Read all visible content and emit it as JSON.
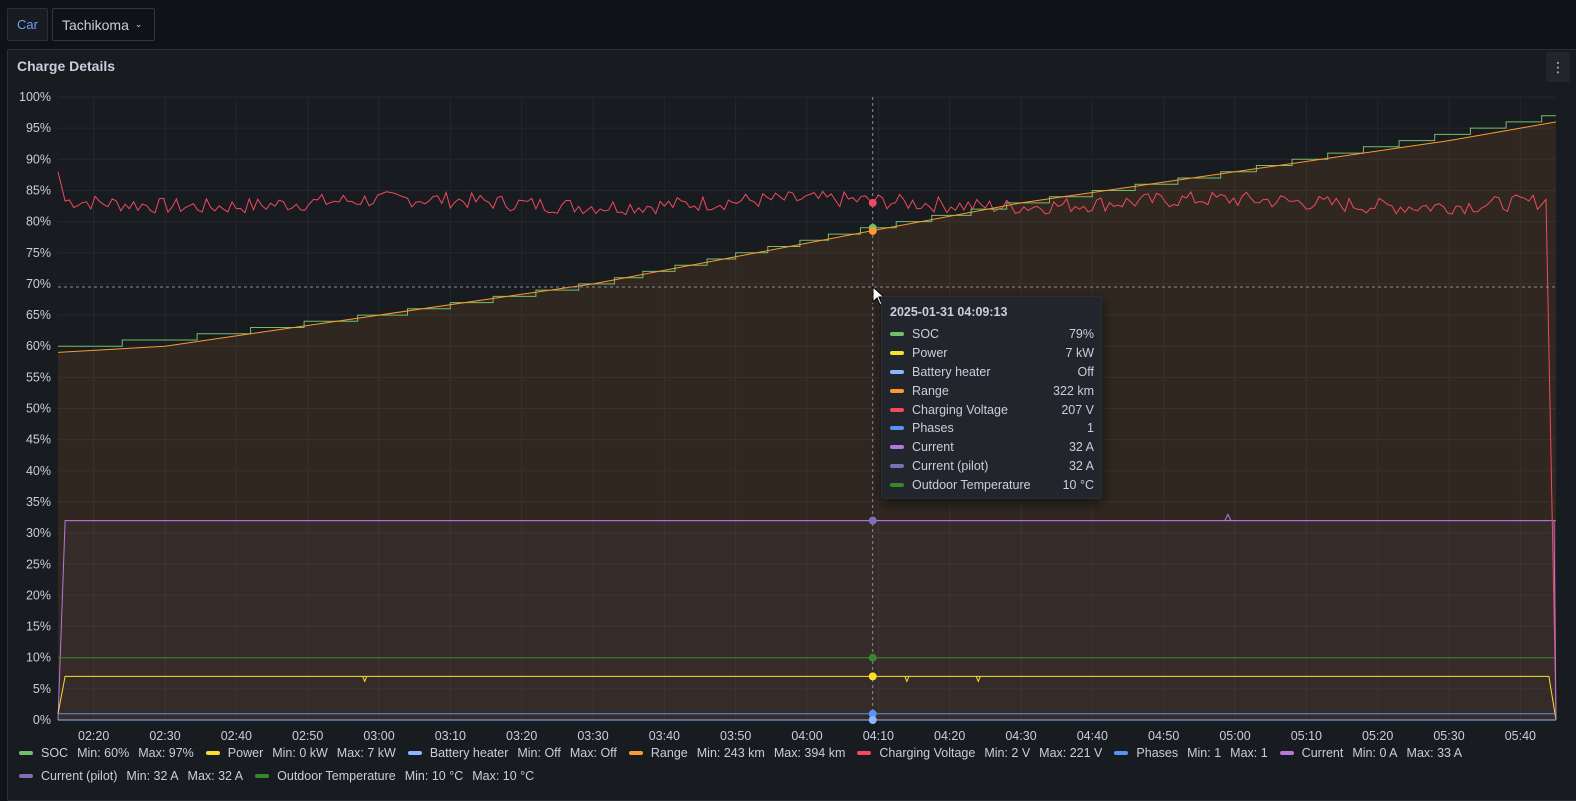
{
  "topbar": {
    "variable_label": "Car",
    "variable_value": "Tachikoma"
  },
  "panel": {
    "title": "Charge Details",
    "menu_icon": "vertical-ellipsis-icon"
  },
  "tooltip": {
    "time": "2025-01-31 04:09:13",
    "rows": [
      {
        "name": "SOC",
        "value": "79%",
        "color": "#73bf69"
      },
      {
        "name": "Power",
        "value": "7 kW",
        "color": "#fade2a"
      },
      {
        "name": "Battery heater",
        "value": "Off",
        "color": "#8ab8ff"
      },
      {
        "name": "Range",
        "value": "322 km",
        "color": "#ff9830"
      },
      {
        "name": "Charging Voltage",
        "value": "207 V",
        "color": "#f2495c"
      },
      {
        "name": "Phases",
        "value": "1",
        "color": "#5794f2"
      },
      {
        "name": "Current",
        "value": "32 A",
        "color": "#b877d9"
      },
      {
        "name": "Current (pilot)",
        "value": "32 A",
        "color": "#806eb7"
      },
      {
        "name": "Outdoor Temperature",
        "value": "10 °C",
        "color": "#37872d"
      }
    ]
  },
  "legend": [
    {
      "name": "SOC",
      "min": "Min: 60%",
      "max": "Max: 97%",
      "color": "#73bf69"
    },
    {
      "name": "Power",
      "min": "Min: 0 kW",
      "max": "Max: 7 kW",
      "color": "#fade2a"
    },
    {
      "name": "Battery heater",
      "min": "Min: Off",
      "max": "Max: Off",
      "color": "#8ab8ff"
    },
    {
      "name": "Range",
      "min": "Min: 243 km",
      "max": "Max: 394 km",
      "color": "#ff9830"
    },
    {
      "name": "Charging Voltage",
      "min": "Min: 2 V",
      "max": "Max: 221 V",
      "color": "#f2495c"
    },
    {
      "name": "Phases",
      "min": "Min: 1",
      "max": "Max: 1",
      "color": "#5794f2"
    },
    {
      "name": "Current",
      "min": "Min: 0 A",
      "max": "Max: 33 A",
      "color": "#b877d9"
    },
    {
      "name": "Current (pilot)",
      "min": "Min: 32 A",
      "max": "Max: 32 A",
      "color": "#806eb7"
    },
    {
      "name": "Outdoor Temperature",
      "min": "Min: 10 °C",
      "max": "Max: 10 °C",
      "color": "#37872d"
    }
  ],
  "chart_data": {
    "type": "line",
    "y_ticks": [
      "0%",
      "5%",
      "10%",
      "15%",
      "20%",
      "25%",
      "30%",
      "35%",
      "40%",
      "45%",
      "50%",
      "55%",
      "60%",
      "65%",
      "70%",
      "75%",
      "80%",
      "85%",
      "90%",
      "95%",
      "100%"
    ],
    "ylim": [
      0,
      100
    ],
    "x_ticks": [
      "02:20",
      "02:30",
      "02:40",
      "02:50",
      "03:00",
      "03:10",
      "03:20",
      "03:30",
      "03:40",
      "03:50",
      "04:00",
      "04:10",
      "04:20",
      "04:30",
      "04:40",
      "04:50",
      "05:00",
      "05:10",
      "05:20",
      "05:30",
      "05:40"
    ],
    "x_range": [
      "02:15",
      "05:45"
    ],
    "crosshair_x": "04:09:13",
    "crosshair_y": 69.5,
    "series": [
      {
        "name": "SOC",
        "color": "#73bf69",
        "points": [
          [
            "02:15",
            60
          ],
          [
            "02:30",
            61
          ],
          [
            "03:00",
            65
          ],
          [
            "03:30",
            70
          ],
          [
            "04:09",
            79
          ],
          [
            "04:30",
            83
          ],
          [
            "05:00",
            88
          ],
          [
            "05:30",
            94
          ],
          [
            "05:45",
            97
          ]
        ],
        "step": true
      },
      {
        "name": "Range",
        "color": "#ff9830",
        "points": [
          [
            "02:15",
            59
          ],
          [
            "02:30",
            60
          ],
          [
            "03:00",
            65
          ],
          [
            "03:30",
            70
          ],
          [
            "04:09",
            78.5
          ],
          [
            "04:30",
            83
          ],
          [
            "05:00",
            88
          ],
          [
            "05:30",
            93
          ],
          [
            "05:45",
            96
          ]
        ],
        "fill": true
      },
      {
        "name": "Charging Voltage",
        "color": "#f2495c",
        "points": [
          [
            "02:15",
            88
          ],
          [
            "02:16",
            83
          ],
          [
            "05:44",
            83
          ],
          [
            "05:45",
            1
          ]
        ],
        "noise": true,
        "level": 83
      },
      {
        "name": "Current",
        "color": "#b877d9",
        "points": [
          [
            "02:15",
            0
          ],
          [
            "02:16",
            32
          ],
          [
            "04:09",
            32
          ],
          [
            "04:59",
            32
          ],
          [
            "05:45",
            32
          ]
        ],
        "fill": true
      },
      {
        "name": "Current (pilot)",
        "color": "#806eb7",
        "points": [
          [
            "02:16",
            32
          ],
          [
            "05:44",
            32
          ]
        ]
      },
      {
        "name": "Outdoor Temperature",
        "color": "#37872d",
        "points": [
          [
            "02:15",
            10
          ],
          [
            "05:45",
            10
          ]
        ]
      },
      {
        "name": "Power",
        "color": "#fade2a",
        "points": [
          [
            "02:15",
            1
          ],
          [
            "02:16",
            7
          ],
          [
            "05:44",
            7
          ],
          [
            "05:45",
            0
          ]
        ]
      },
      {
        "name": "Phases",
        "color": "#5794f2",
        "points": [
          [
            "02:15",
            1
          ],
          [
            "05:45",
            1
          ]
        ]
      },
      {
        "name": "Battery heater",
        "color": "#8ab8ff",
        "points": [
          [
            "02:15",
            0
          ],
          [
            "05:45",
            0
          ]
        ]
      }
    ]
  }
}
